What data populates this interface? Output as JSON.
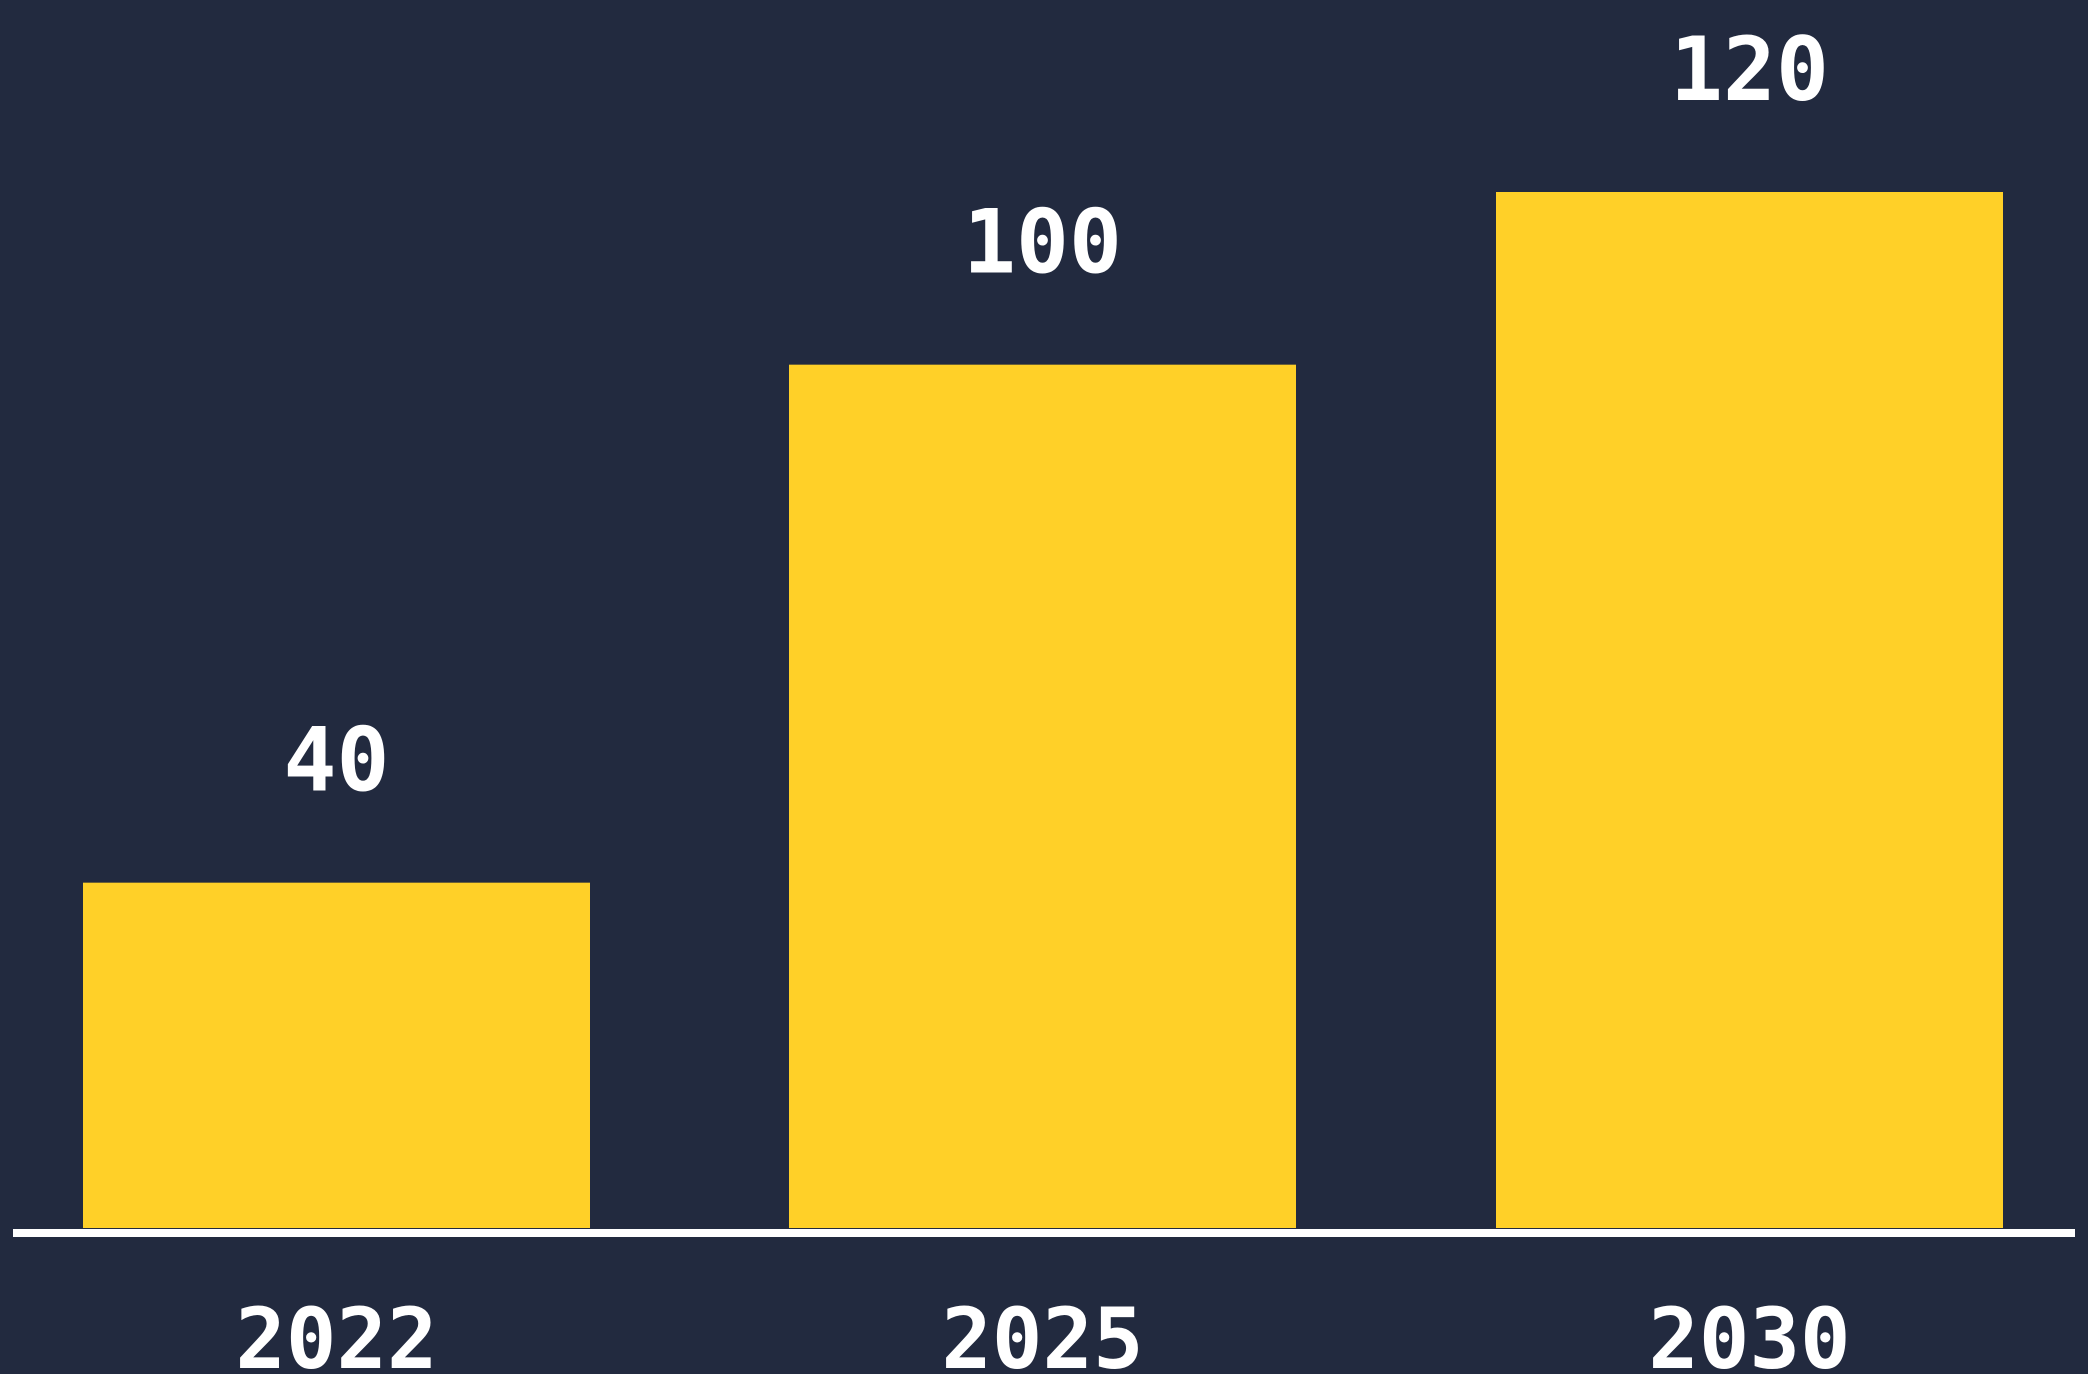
{
  "chart_data": {
    "type": "bar",
    "categories": [
      "2022",
      "2025",
      "2030"
    ],
    "values": [
      40,
      100,
      120
    ],
    "data_labels": [
      "40",
      "100",
      "120"
    ],
    "title": "",
    "xlabel": "",
    "ylabel": "",
    "ylim": [
      0,
      120
    ],
    "grid": false,
    "legend": "none",
    "colors": {
      "background": "#222a3f",
      "bar": "#ffd028",
      "text": "#ffffff",
      "axis": "#ffffff"
    }
  }
}
